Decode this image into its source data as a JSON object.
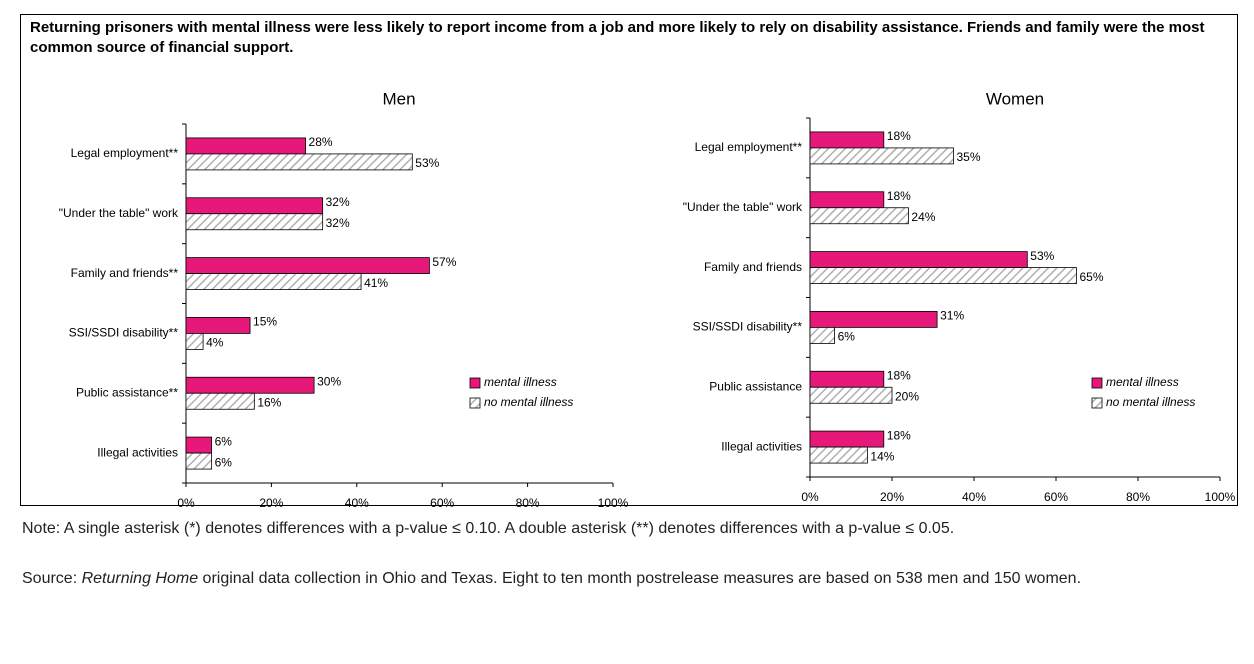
{
  "title": "Returning prisoners with mental illness were less likely to report income from a job and more likely to rely on disability assistance.  Friends and family were the most common source of financial support.",
  "note": "Note: A single asterisk (*) denotes differences with a p-value ≤ 0.10.  A double asterisk (**) denotes differences with a p-value ≤ 0.05.",
  "source": [
    "Source: ",
    "Returning Home",
    " original data collection in Ohio and Texas. Eight to ten month postrelease measures are based on 538 men and 150 women."
  ],
  "chart_data": [
    {
      "type": "bar",
      "orientation": "horizontal",
      "title": "Men",
      "categories": [
        "Legal employment**",
        "\"Under the table\" work",
        "Family and friends**",
        "SSI/SSDI disability**",
        "Public assistance**",
        "Illegal activities"
      ],
      "series": [
        {
          "name": "mental illness",
          "color": "#e6197a",
          "values": [
            28,
            32,
            57,
            15,
            30,
            6
          ],
          "value_labels": [
            "28%",
            "32%",
            "57%",
            "15%",
            "30%",
            "6%"
          ]
        },
        {
          "name": "no mental illness",
          "color": "#ffffff",
          "hatch": "#b0b0b0",
          "values": [
            53,
            32,
            41,
            4,
            16,
            6
          ],
          "value_labels": [
            "53%",
            "32%",
            "41%",
            "4%",
            "16%",
            "6%"
          ]
        }
      ],
      "xlim": [
        0,
        100
      ],
      "xticks": [
        {
          "value": 0,
          "label": "0%"
        },
        {
          "value": 20,
          "label": "20%"
        },
        {
          "value": 40,
          "label": "40%"
        },
        {
          "value": 60,
          "label": "60%"
        },
        {
          "value": 80,
          "label": "80%"
        },
        {
          "value": 100,
          "label": "100%"
        }
      ],
      "legend": "right"
    },
    {
      "type": "bar",
      "orientation": "horizontal",
      "title": "Women",
      "categories": [
        "Legal employment**",
        "\"Under the table\" work",
        "Family and friends",
        "SSI/SSDI disability**",
        "Public assistance",
        "Illegal activities"
      ],
      "series": [
        {
          "name": "mental illness",
          "color": "#e6197a",
          "values": [
            18,
            18,
            53,
            31,
            18,
            18
          ],
          "value_labels": [
            "18%",
            "18%",
            "53%",
            "31%",
            "18%",
            "18%"
          ]
        },
        {
          "name": "no mental illness",
          "color": "#ffffff",
          "hatch": "#b0b0b0",
          "values": [
            35,
            24,
            65,
            6,
            20,
            14
          ],
          "value_labels": [
            "35%",
            "24%",
            "65%",
            "6%",
            "20%",
            "14%"
          ]
        }
      ],
      "xlim": [
        0,
        100
      ],
      "xticks": [
        {
          "value": 0,
          "label": "0%"
        },
        {
          "value": 20,
          "label": "20%"
        },
        {
          "value": 40,
          "label": "40%"
        },
        {
          "value": 60,
          "label": "60%"
        },
        {
          "value": 80,
          "label": "80%"
        },
        {
          "value": 100,
          "label": "100%"
        }
      ],
      "legend": "right"
    }
  ]
}
